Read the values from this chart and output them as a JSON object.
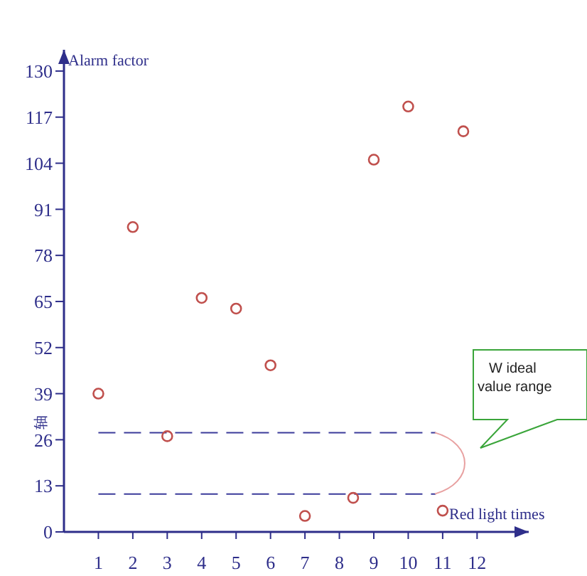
{
  "chart_data": {
    "type": "scatter",
    "xlabel": "Red light times",
    "ylabel": "Alarm factor",
    "x": [
      1,
      2,
      3,
      4,
      5,
      6,
      7,
      8.4,
      9,
      10,
      11.6,
      11
    ],
    "series": [
      {
        "color": "#c0504d",
        "values": [
          39,
          86,
          27,
          66,
          63,
          47,
          4.5,
          9.6,
          105,
          120,
          113,
          6
        ]
      }
    ],
    "xlim": [
      0,
      13.5
    ],
    "ylim": [
      0,
      136
    ],
    "xticks": [
      1,
      2,
      3,
      4,
      5,
      6,
      7,
      8,
      9,
      10,
      11,
      12
    ],
    "yticks": [
      0,
      13,
      26,
      39,
      52,
      65,
      78,
      91,
      104,
      117,
      130
    ],
    "ref_lines": [
      {
        "axis": "y",
        "value": 28,
        "color": "#3b3b9a",
        "line_style": "dashed"
      },
      {
        "axis": "y",
        "value": 10.7,
        "color": "#3b3b9a",
        "line_style": "dashed"
      }
    ],
    "annotations": [
      "W ideal value range",
      "轴"
    ],
    "marker": "circle",
    "grid": false
  }
}
